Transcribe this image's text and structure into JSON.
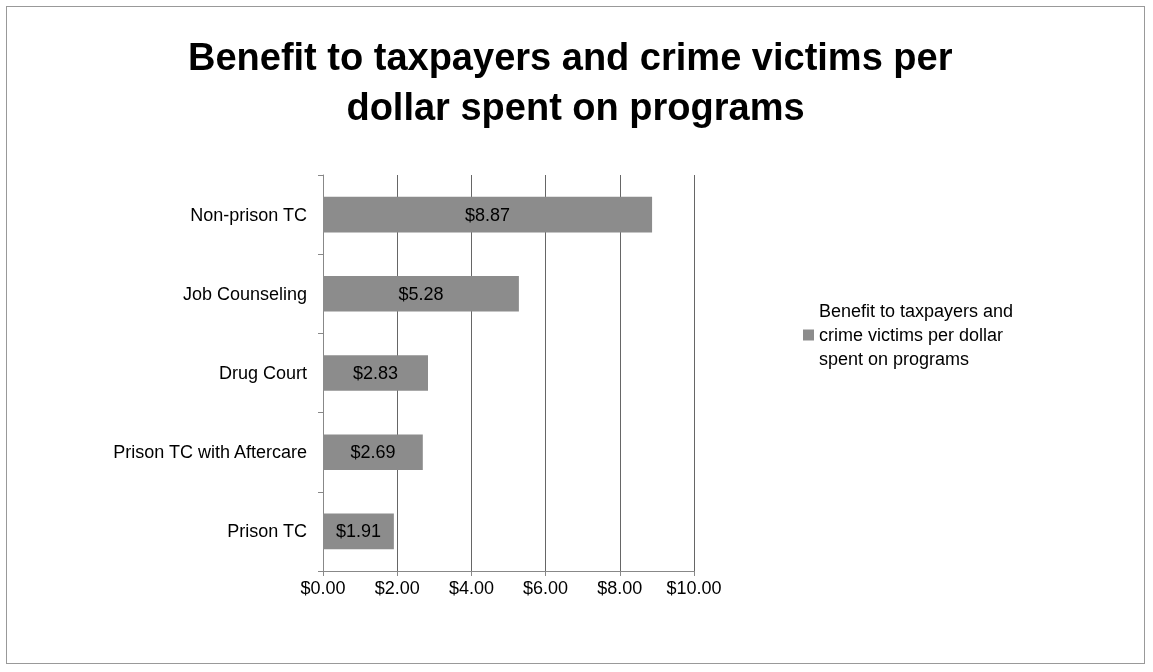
{
  "chart_data": {
    "type": "bar",
    "orientation": "horizontal",
    "title": "Benefit to taxpayers and crime victims per dollar spent on programs",
    "categories": [
      "Non-prison TC",
      "Job Counseling",
      "Drug Court",
      "Prison TC with Aftercare",
      "Prison TC"
    ],
    "series": [
      {
        "name": "Benefit to taxpayers and crime victims per dollar spent on programs",
        "color": "#8c8c8c",
        "values": [
          8.87,
          5.28,
          2.83,
          2.69,
          1.91
        ],
        "value_labels": [
          "$8.87",
          "$5.28",
          "$2.83",
          "$2.69",
          "$1.91"
        ]
      }
    ],
    "xlim": [
      0,
      10
    ],
    "xticks": [
      {
        "value": 0,
        "label": "$0.00"
      },
      {
        "value": 2,
        "label": "$2.00"
      },
      {
        "value": 4,
        "label": "$4.00"
      },
      {
        "value": 6,
        "label": "$6.00"
      },
      {
        "value": 8,
        "label": "$8.00"
      },
      {
        "value": 10,
        "label": "$10.00"
      }
    ],
    "grid": "x",
    "legend": "right"
  }
}
